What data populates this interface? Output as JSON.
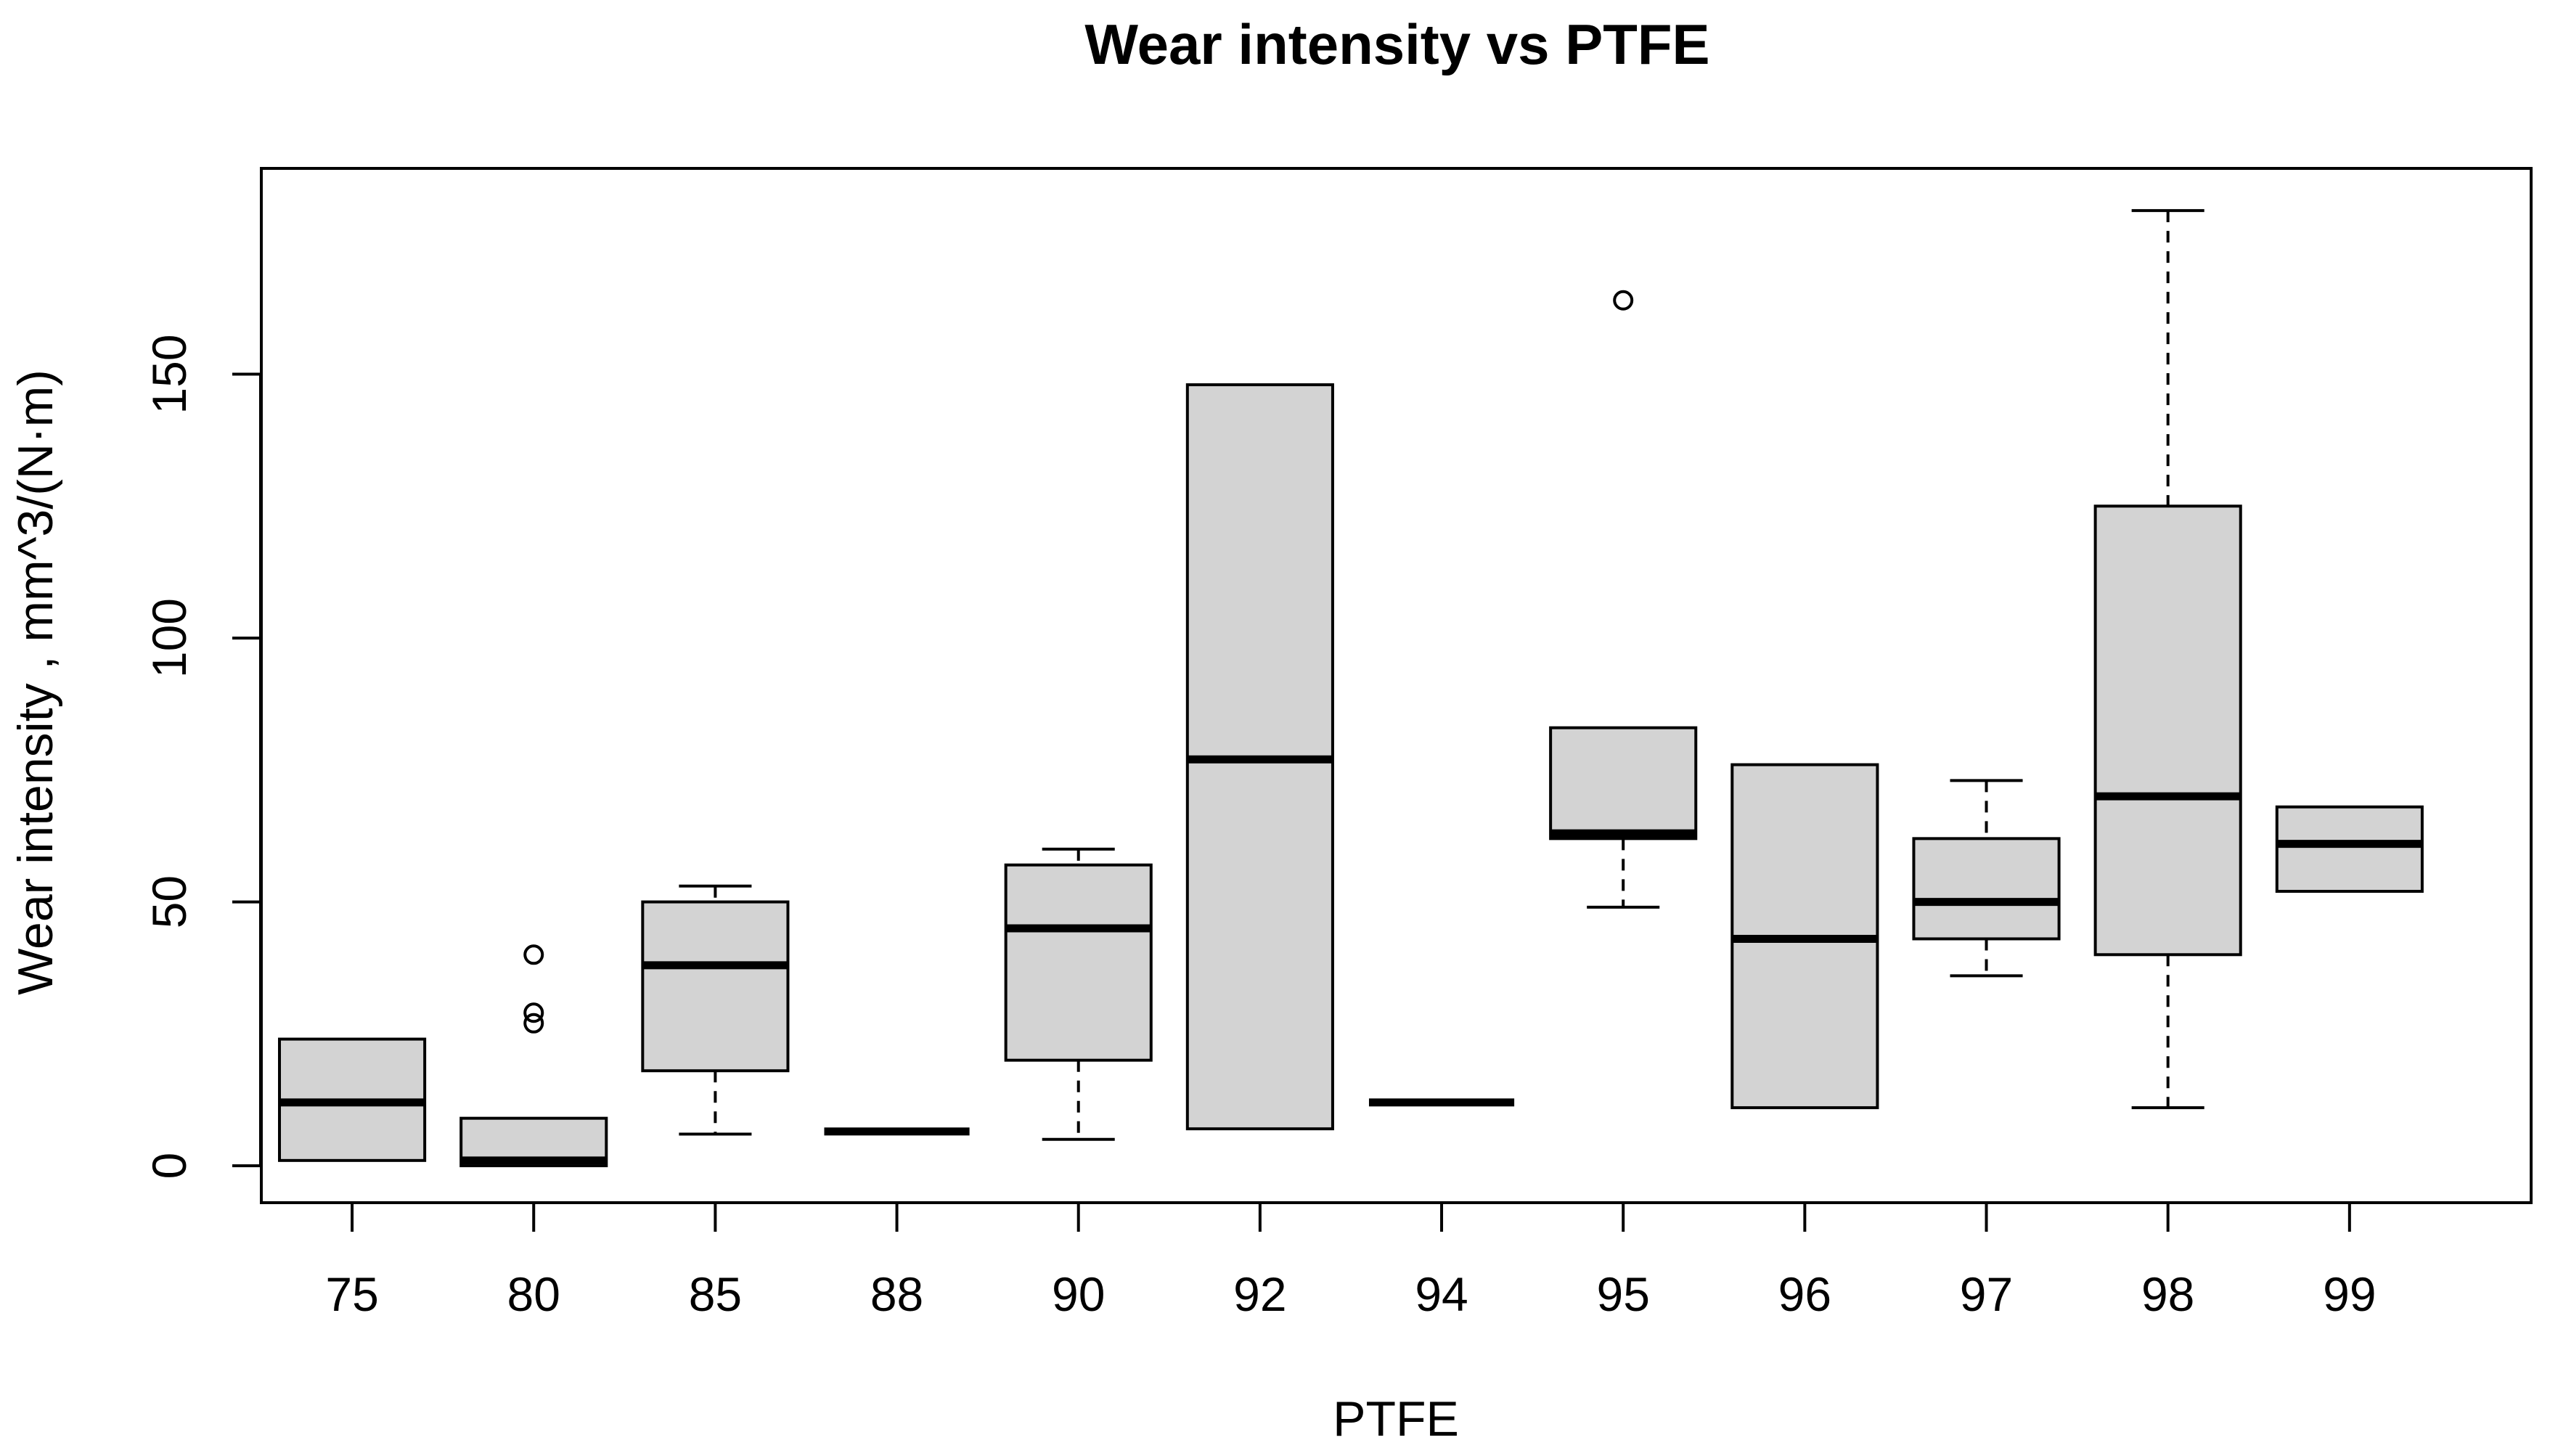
{
  "chart_data": {
    "type": "boxplot",
    "title": "Wear intensity vs PTFE",
    "xlabel": "PTFE",
    "ylabel": "Wear intensity , mm^3/(N·m)",
    "ylim": [
      -7,
      189
    ],
    "yticks": [
      0,
      50,
      100,
      150
    ],
    "categories": [
      "75",
      "80",
      "85",
      "88",
      "90",
      "92",
      "94",
      "95",
      "96",
      "97",
      "98",
      "99"
    ],
    "boxes": [
      {
        "category": "75",
        "min": 1,
        "q1": 1,
        "median": 12,
        "q3": 24,
        "max": 24,
        "outliers": []
      },
      {
        "category": "80",
        "min": 0,
        "q1": 0,
        "median": 1,
        "q3": 9,
        "max": 9,
        "outliers": [
          40,
          29,
          27
        ]
      },
      {
        "category": "85",
        "min": 6,
        "q1": 18,
        "median": 38,
        "q3": 50,
        "max": 53,
        "outliers": []
      },
      {
        "category": "88",
        "min": 6.5,
        "q1": 6.5,
        "median": 6.5,
        "q3": 6.5,
        "max": 6.5,
        "outliers": []
      },
      {
        "category": "90",
        "min": 5,
        "q1": 20,
        "median": 45,
        "q3": 57,
        "max": 60,
        "outliers": []
      },
      {
        "category": "92",
        "min": 7,
        "q1": 7,
        "median": 77,
        "q3": 148,
        "max": 148,
        "outliers": []
      },
      {
        "category": "94",
        "min": 12,
        "q1": 12,
        "median": 12,
        "q3": 12,
        "max": 12,
        "outliers": []
      },
      {
        "category": "95",
        "min": 49,
        "q1": 62,
        "median": 63,
        "q3": 83,
        "max": 83,
        "outliers": [
          164
        ]
      },
      {
        "category": "96",
        "min": 11,
        "q1": 11,
        "median": 43,
        "q3": 76,
        "max": 76,
        "outliers": []
      },
      {
        "category": "97",
        "min": 36,
        "q1": 43,
        "median": 50,
        "q3": 62,
        "max": 73,
        "outliers": []
      },
      {
        "category": "98",
        "min": 11,
        "q1": 40,
        "median": 70,
        "q3": 125,
        "max": 181,
        "outliers": []
      },
      {
        "category": "99",
        "min": 52,
        "q1": 52,
        "median": 61,
        "q3": 68,
        "max": 68,
        "outliers": []
      }
    ],
    "box_fill": "#d3d3d3",
    "line_color": "#000000"
  }
}
